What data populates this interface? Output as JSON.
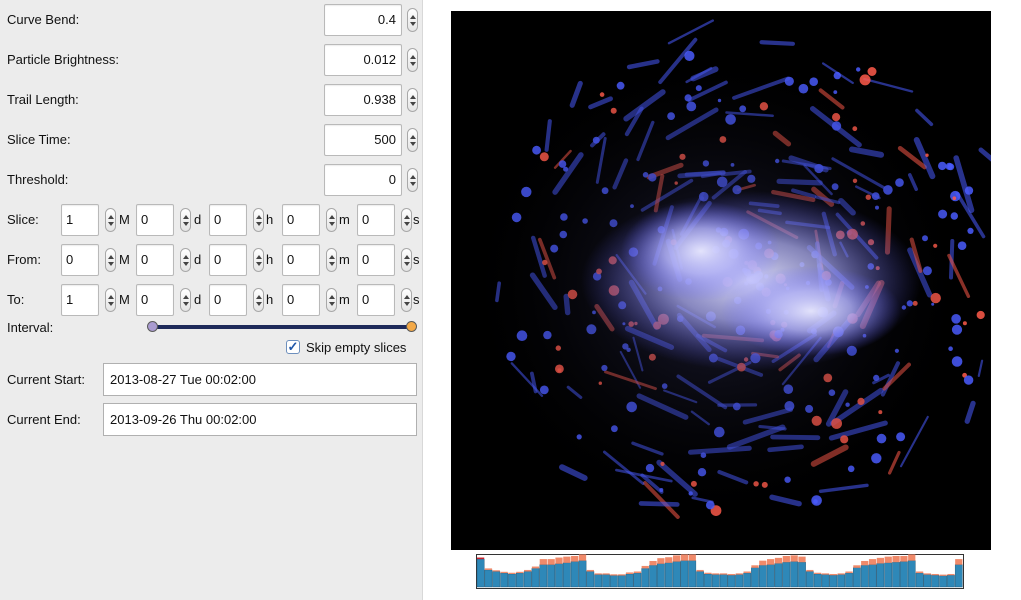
{
  "panel": {
    "curve_bend": {
      "label": "Curve Bend:",
      "value": "0.4"
    },
    "particle_brightness": {
      "label": "Particle Brightness:",
      "value": "0.012"
    },
    "trail_length": {
      "label": "Trail Length:",
      "value": "0.938"
    },
    "slice_time": {
      "label": "Slice Time:",
      "value": "500"
    },
    "threshold": {
      "label": "Threshold:",
      "value": "0"
    },
    "units": {
      "month": "M",
      "day": "d",
      "hour": "h",
      "minute": "m",
      "second": "s"
    },
    "slice": {
      "label": "Slice:",
      "values": [
        "1",
        "0",
        "0",
        "0",
        "0"
      ]
    },
    "from": {
      "label": "From:",
      "values": [
        "0",
        "0",
        "0",
        "0",
        "0"
      ]
    },
    "to": {
      "label": "To:",
      "values": [
        "1",
        "0",
        "0",
        "0",
        "0"
      ]
    },
    "interval": {
      "label": "Interval:",
      "low_fraction": 0.0,
      "high_fraction": 1.0
    },
    "skip_empty": {
      "label": "Skip empty slices",
      "checked": true
    },
    "current_start": {
      "label": "Current Start:",
      "value": "2013-08-27 Tue 00:02:00"
    },
    "current_end": {
      "label": "Current End:",
      "value": "2013-09-26 Thu 00:02:00"
    }
  },
  "colors": {
    "panel_bg": "#ececec",
    "slider_track": "#1e2a5a",
    "slider_low_knob": "#a99bd0",
    "slider_high_knob": "#f3a948",
    "viz_bg": "#000000",
    "particle_blue": "#4a5cff",
    "particle_red": "#ff5a4a",
    "hist_blue": "#2e88b8",
    "hist_orange": "#f08a6a",
    "hist_red": "#c8202a"
  },
  "histogram": {
    "blue": [
      0.9,
      0.55,
      0.5,
      0.45,
      0.42,
      0.45,
      0.5,
      0.6,
      0.72,
      0.72,
      0.75,
      0.78,
      0.82,
      0.85,
      0.5,
      0.4,
      0.4,
      0.37,
      0.37,
      0.42,
      0.45,
      0.6,
      0.7,
      0.75,
      0.78,
      0.82,
      0.85,
      0.85,
      0.5,
      0.42,
      0.4,
      0.4,
      0.38,
      0.4,
      0.45,
      0.62,
      0.7,
      0.72,
      0.76,
      0.8,
      0.82,
      0.8,
      0.5,
      0.42,
      0.4,
      0.38,
      0.4,
      0.45,
      0.62,
      0.7,
      0.72,
      0.76,
      0.78,
      0.8,
      0.82,
      0.85,
      0.45,
      0.4,
      0.38,
      0.36,
      0.38,
      0.72
    ],
    "orange": [
      0.05,
      0.05,
      0.04,
      0.04,
      0.04,
      0.04,
      0.05,
      0.06,
      0.18,
      0.18,
      0.2,
      0.2,
      0.18,
      0.2,
      0.05,
      0.04,
      0.04,
      0.04,
      0.04,
      0.05,
      0.05,
      0.08,
      0.14,
      0.18,
      0.18,
      0.2,
      0.2,
      0.2,
      0.05,
      0.04,
      0.04,
      0.04,
      0.04,
      0.04,
      0.05,
      0.08,
      0.15,
      0.18,
      0.18,
      0.2,
      0.2,
      0.18,
      0.05,
      0.04,
      0.04,
      0.04,
      0.04,
      0.05,
      0.08,
      0.14,
      0.18,
      0.18,
      0.2,
      0.2,
      0.18,
      0.2,
      0.05,
      0.04,
      0.04,
      0.04,
      0.04,
      0.18
    ],
    "highlighted_index": 0
  }
}
